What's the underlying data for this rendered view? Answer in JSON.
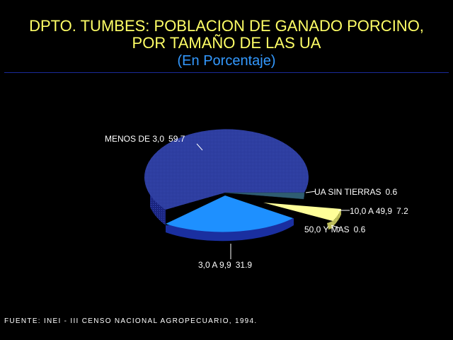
{
  "chart_data": {
    "type": "pie",
    "title_line1": "DPTO. TUMBES: POBLACION DE GANADO PORCINO,",
    "title_line2": "POR TAMAÑO DE LAS UA",
    "subtitle": "(En Porcentaje)",
    "slices": [
      {
        "label": "MENOS DE 3,0",
        "value": 59.7,
        "display": "59.7",
        "color": "#1f2e9e"
      },
      {
        "label": "UA SIN TIERRAS",
        "value": 0.6,
        "display": "0.6",
        "color": "#335577"
      },
      {
        "label": "10,0 A 49,9",
        "value": 7.2,
        "display": "7.2",
        "color": "#ffff99"
      },
      {
        "label": "50,0 Y MAS",
        "value": 0.6,
        "display": "0.6",
        "color": "#ffff99"
      },
      {
        "label": "3,0 A 9,9",
        "value": 31.9,
        "display": "31.9",
        "color": "#1e90ff"
      }
    ]
  },
  "source": "FUENTE: INEI - III CENSO NACIONAL AGROPECUARIO, 1994."
}
